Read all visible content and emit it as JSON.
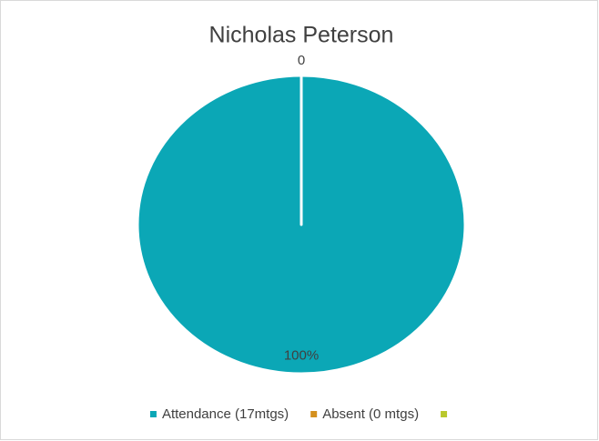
{
  "chart_data": {
    "type": "pie",
    "title": "Nicholas Peterson",
    "categories": [
      "Attendance (17mtgs)",
      "Absent (0 mtgs)",
      null
    ],
    "values": [
      100,
      0,
      null
    ],
    "value_labels": [
      "100%",
      "0",
      null
    ],
    "colors": [
      "#0ba7b6",
      "#d4901e",
      "#b9c82c"
    ],
    "legend": "bottom"
  }
}
